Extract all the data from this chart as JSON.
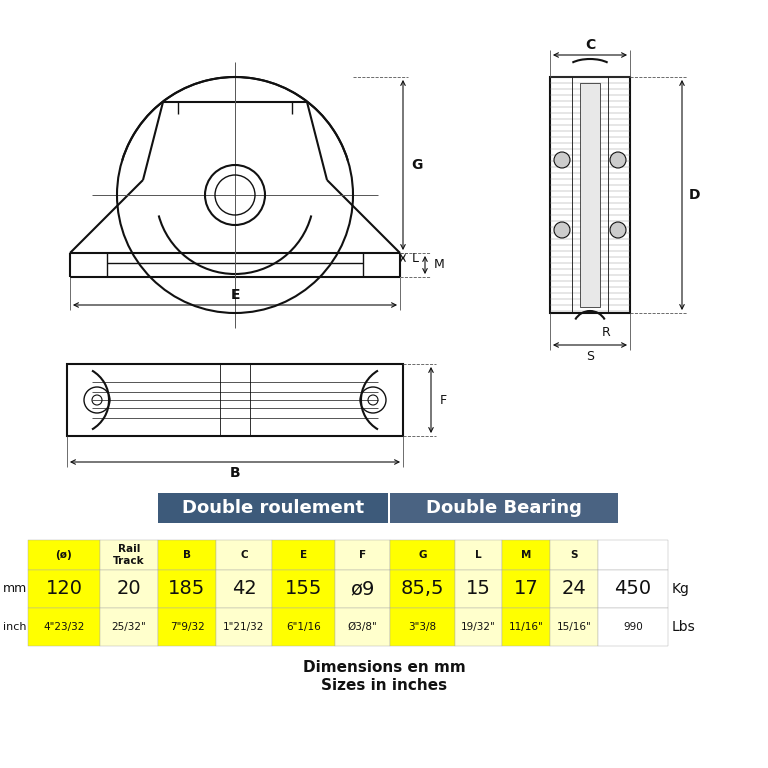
{
  "title_fr": "Double roulement",
  "title_en": "Double Bearing",
  "title_bg": "#3d5a7a",
  "title_fg": "#ffffff",
  "col_headers": [
    "(ø)",
    "Rail\nTrack",
    "B",
    "C",
    "E",
    "F",
    "G",
    "L",
    "M",
    "S",
    ""
  ],
  "mm_values": [
    "120",
    "20",
    "185",
    "42",
    "155",
    "ø9",
    "85,5",
    "15",
    "17",
    "24",
    "450"
  ],
  "inch_values": [
    "4\"23/32",
    "25/32\"",
    "7\"9/32",
    "1\"21/32",
    "6\"1/16",
    "Ø3/8\"",
    "3\"3/8",
    "19/32\"",
    "11/16\"",
    "15/16\"",
    "990"
  ],
  "kg_label": "Kg",
  "lbs_label": "Lbs",
  "footer1": "Dimensions en mm",
  "footer2": "Sizes in inches",
  "bg_color": "#ffffff",
  "yellow": "#ffff00",
  "light_yellow": "#ffffcc"
}
